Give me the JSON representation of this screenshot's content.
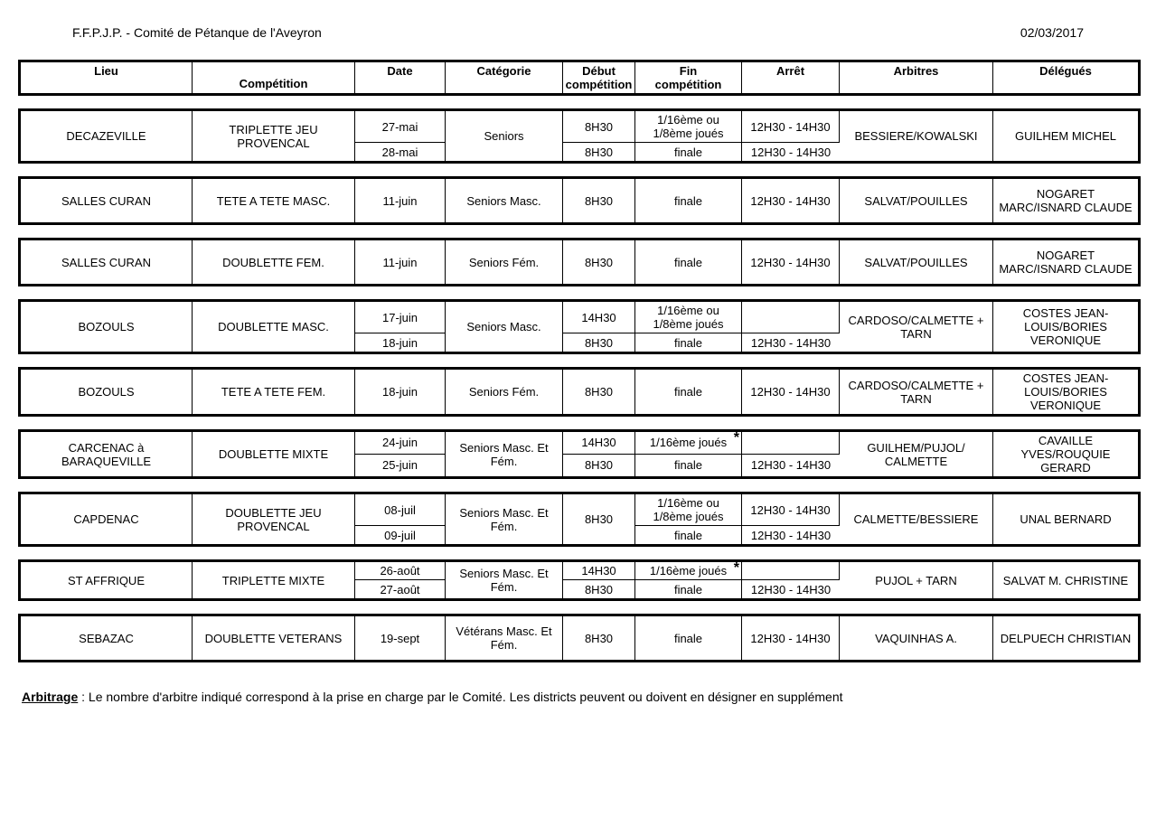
{
  "header": {
    "org": "F.F.P.J.P. - Comité de Pétanque de l'Aveyron",
    "date": "02/03/2017"
  },
  "columns": {
    "lieu": "Lieu",
    "competition": "Compétition",
    "date": "Date",
    "categorie": "Catégorie",
    "debut": "Début",
    "debut2": "compétition",
    "fin": "Fin",
    "fin2": "compétition",
    "arret": "Arrêt",
    "arbitres": "Arbitres",
    "delegues": "Délégués"
  },
  "rows": [
    {
      "lieu": "DECAZEVILLE",
      "comp": "TRIPLETTE JEU PROVENCAL",
      "date1": "27-mai",
      "date2": "28-mai",
      "cat": "Seniors",
      "deb1": "8H30",
      "deb2": "8H30",
      "fin1": "1/16ème ou 1/8ème joués",
      "fin2": "finale",
      "arr1": "12H30 - 14H30",
      "arr2": "12H30 - 14H30",
      "arb": "BESSIERE/KOWALSKI",
      "del": "GUILHEM MICHEL",
      "two": true,
      "arr1_show": true
    },
    {
      "lieu": "SALLES CURAN",
      "comp": "TETE A TETE MASC.",
      "date1": "11-juin",
      "cat": "Seniors Masc.",
      "deb1": "8H30",
      "fin1": "finale",
      "arr1": "12H30 - 14H30",
      "arb": "SALVAT/POUILLES",
      "del": "NOGARET MARC/ISNARD CLAUDE",
      "two": false
    },
    {
      "lieu": "SALLES CURAN",
      "comp": "DOUBLETTE FEM.",
      "date1": "11-juin",
      "cat": "Seniors  Fém.",
      "deb1": "8H30",
      "fin1": "finale",
      "arr1": "12H30 - 14H30",
      "arb": "SALVAT/POUILLES",
      "del": "NOGARET MARC/ISNARD CLAUDE",
      "two": false
    },
    {
      "lieu": "BOZOULS",
      "comp": "DOUBLETTE MASC.",
      "date1": "17-juin",
      "date2": "18-juin",
      "cat": "Seniors Masc.",
      "deb1": "14H30",
      "deb2": "8H30",
      "fin1": "1/16ème ou 1/8ème joués",
      "fin2": "finale",
      "arr1": "",
      "arr2": "12H30 - 14H30",
      "arb": "CARDOSO/CALMETTE + TARN",
      "del": "COSTES JEAN-LOUIS/BORIES VERONIQUE",
      "two": true,
      "arr1_show": true
    },
    {
      "lieu": "BOZOULS",
      "comp": "TETE A TETE FEM.",
      "date1": "18-juin",
      "cat": "Seniors Fém.",
      "deb1": "8H30",
      "fin1": "finale",
      "arr1": "12H30 - 14H30",
      "arb": "CARDOSO/CALMETTE + TARN",
      "del": "COSTES JEAN-LOUIS/BORIES VERONIQUE",
      "two": false
    },
    {
      "lieu": "CARCENAC à BARAQUEVILLE",
      "comp": "DOUBLETTE MIXTE",
      "date1": "24-juin",
      "date2": "25-juin",
      "cat": "Seniors Masc. Et Fém.",
      "deb1": "14H30",
      "deb2": "8H30",
      "fin1": "1/16ème joués",
      "fin1_star": true,
      "fin2": "finale",
      "arr1": "",
      "arr2": "12H30 - 14H30",
      "arb": "GUILHEM/PUJOL/ CALMETTE",
      "del": "CAVAILLE YVES/ROUQUIE GERARD",
      "two": true,
      "arr1_show": true
    },
    {
      "lieu": "CAPDENAC",
      "comp": "DOUBLETTE JEU PROVENCAL",
      "date1": "08-juil",
      "date2": "09-juil",
      "cat": "Seniors Masc. Et Fém.",
      "deb1": "8H30",
      "deb_rowspan": true,
      "fin1": "1/16ème ou 1/8ème joués",
      "fin2": "finale",
      "arr1": "12H30 - 14H30",
      "arr2": "12H30 - 14H30",
      "arb": "CALMETTE/BESSIERE",
      "del": "UNAL BERNARD",
      "two": true,
      "arr1_show": true
    },
    {
      "lieu": "ST AFFRIQUE",
      "comp": "TRIPLETTE MIXTE",
      "date1": "26-août",
      "date2": "27-août",
      "cat": "Seniors Masc. Et Fém.",
      "deb1": "14H30",
      "deb2": "8H30",
      "fin1": "1/16ème joués",
      "fin1_star": true,
      "fin2": "finale",
      "arr1": "",
      "arr2": "12H30 - 14H30",
      "arb": "PUJOL + TARN",
      "del": "SALVAT M. CHRISTINE",
      "two": true,
      "arr1_show": true
    },
    {
      "lieu": "SEBAZAC",
      "comp": "DOUBLETTE VETERANS",
      "date1": "19-sept",
      "cat": "Vétérans Masc. Et Fém.",
      "deb1": "8H30",
      "fin1": "finale",
      "arr1": "12H30 - 14H30",
      "arb": "VAQUINHAS A.",
      "del": "DELPUECH CHRISTIAN",
      "two": false
    }
  ],
  "footer": {
    "label": "Arbitrage",
    "text": " : Le nombre d'arbitre indiqué correspond à la prise en charge par le Comité. Les districts peuvent ou doivent en désigner en supplément"
  }
}
